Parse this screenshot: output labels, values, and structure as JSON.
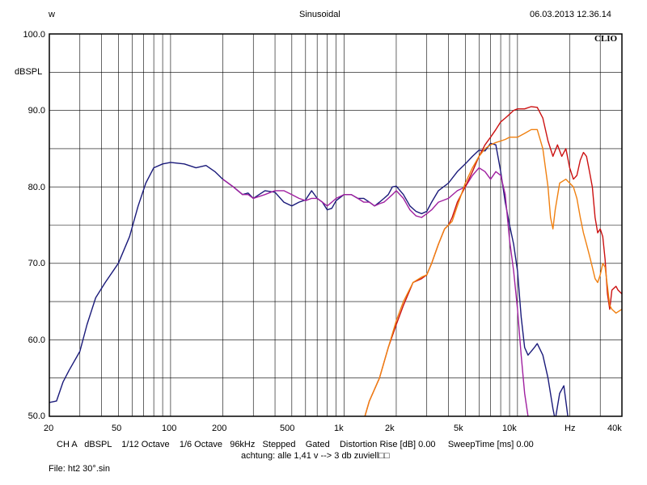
{
  "header": {
    "left": "w",
    "center": "Sinusoidal",
    "right": "06.03.2013 12.36.14",
    "logo": "CLIO"
  },
  "footer": {
    "line1": "CH A   dBSPL    1/12 Octave    1/6 Octave   96kHz   Stepped    Gated    Distortion Rise [dB] 0.00     SweepTime [ms] 0.00",
    "line2": "achtung: alle 1,41 v --> 3 db zuviell□□",
    "file": "File: ht2 30°.sin"
  },
  "chart_data": {
    "type": "line",
    "ylabel": "dBSPL",
    "xunit": "Hz",
    "xscale": "log",
    "xlim": [
      20,
      40000
    ],
    "ylim": [
      50,
      100
    ],
    "ytick_labels": [
      "100.0",
      "90.0",
      "80.0",
      "70.0",
      "60.0",
      "50.0"
    ],
    "xtick_labels": [
      "20",
      "50",
      "100",
      "200",
      "500",
      "1k",
      "2k",
      "5k",
      "10k",
      "Hz",
      "40k"
    ],
    "grid": true,
    "series": [
      {
        "color": "#1a1a7a",
        "points": [
          [
            20,
            51.8
          ],
          [
            22,
            52
          ],
          [
            24,
            54.5
          ],
          [
            26,
            56
          ],
          [
            30,
            58.5
          ],
          [
            33,
            62
          ],
          [
            37,
            65.5
          ],
          [
            42,
            67.5
          ],
          [
            50,
            70
          ],
          [
            58,
            73.5
          ],
          [
            65,
            77.5
          ],
          [
            72,
            80.5
          ],
          [
            80,
            82.5
          ],
          [
            90,
            83
          ],
          [
            100,
            83.2
          ],
          [
            120,
            83
          ],
          [
            140,
            82.5
          ],
          [
            160,
            82.8
          ],
          [
            180,
            82
          ],
          [
            200,
            81
          ],
          [
            230,
            80
          ],
          [
            260,
            79
          ],
          [
            280,
            79.2
          ],
          [
            300,
            78.5
          ],
          [
            350,
            79.5
          ],
          [
            400,
            79.3
          ],
          [
            450,
            78
          ],
          [
            500,
            77.5
          ],
          [
            550,
            78
          ],
          [
            600,
            78.3
          ],
          [
            650,
            79.5
          ],
          [
            700,
            78.5
          ],
          [
            750,
            78
          ],
          [
            800,
            77
          ],
          [
            850,
            77.2
          ],
          [
            900,
            78.2
          ],
          [
            1000,
            79
          ],
          [
            1100,
            79
          ],
          [
            1200,
            78.5
          ],
          [
            1300,
            78.5
          ],
          [
            1400,
            78
          ],
          [
            1500,
            77.5
          ],
          [
            1600,
            78
          ],
          [
            1700,
            78.5
          ],
          [
            1800,
            79
          ],
          [
            1900,
            80
          ],
          [
            2000,
            80.1
          ],
          [
            2200,
            79
          ],
          [
            2400,
            77.5
          ],
          [
            2600,
            76.8
          ],
          [
            2800,
            76.5
          ],
          [
            3000,
            76.8
          ],
          [
            3200,
            78
          ],
          [
            3500,
            79.5
          ],
          [
            4000,
            80.5
          ],
          [
            4500,
            82
          ],
          [
            5000,
            83
          ],
          [
            5500,
            84
          ],
          [
            6000,
            84.8
          ],
          [
            6500,
            84.7
          ],
          [
            7000,
            85.7
          ],
          [
            7500,
            85.5
          ],
          [
            8000,
            82
          ],
          [
            8500,
            78
          ],
          [
            9000,
            75
          ],
          [
            9500,
            72.5
          ],
          [
            10000,
            69
          ],
          [
            10500,
            63
          ],
          [
            11000,
            59
          ],
          [
            11500,
            58
          ],
          [
            12000,
            58.5
          ],
          [
            12500,
            59
          ],
          [
            13000,
            59.5
          ],
          [
            14000,
            58
          ],
          [
            15000,
            55
          ],
          [
            16000,
            51
          ],
          [
            16500,
            49.5
          ],
          [
            17500,
            53
          ],
          [
            18500,
            54
          ],
          [
            19500,
            50
          ],
          [
            20000,
            49.5
          ]
        ]
      },
      {
        "color": "#a020a0",
        "points": [
          [
            200,
            81
          ],
          [
            230,
            80
          ],
          [
            260,
            79
          ],
          [
            280,
            79
          ],
          [
            300,
            78.5
          ],
          [
            350,
            79
          ],
          [
            400,
            79.5
          ],
          [
            450,
            79.5
          ],
          [
            500,
            79
          ],
          [
            550,
            78.5
          ],
          [
            600,
            78.2
          ],
          [
            650,
            78.5
          ],
          [
            700,
            78.5
          ],
          [
            750,
            78
          ],
          [
            800,
            77.5
          ],
          [
            850,
            78
          ],
          [
            900,
            78.5
          ],
          [
            1000,
            79
          ],
          [
            1100,
            79
          ],
          [
            1200,
            78.5
          ],
          [
            1300,
            78
          ],
          [
            1400,
            78
          ],
          [
            1500,
            77.5
          ],
          [
            1600,
            77.8
          ],
          [
            1700,
            78
          ],
          [
            1800,
            78.5
          ],
          [
            1900,
            79
          ],
          [
            2000,
            79.5
          ],
          [
            2200,
            78.5
          ],
          [
            2400,
            77
          ],
          [
            2600,
            76.2
          ],
          [
            2800,
            76
          ],
          [
            3000,
            76.5
          ],
          [
            3200,
            77
          ],
          [
            3500,
            78
          ],
          [
            4000,
            78.5
          ],
          [
            4500,
            79.5
          ],
          [
            5000,
            80
          ],
          [
            5500,
            81.5
          ],
          [
            6000,
            82.5
          ],
          [
            6500,
            82
          ],
          [
            7000,
            81
          ],
          [
            7500,
            82
          ],
          [
            8000,
            81.5
          ],
          [
            8500,
            79
          ],
          [
            9000,
            73
          ],
          [
            9500,
            69
          ],
          [
            10000,
            64
          ],
          [
            10500,
            58
          ],
          [
            11000,
            53
          ],
          [
            11500,
            50
          ],
          [
            11800,
            49.5
          ]
        ]
      },
      {
        "color": "#cc1111",
        "points": [
          [
            1300,
            49.5
          ],
          [
            1400,
            52
          ],
          [
            1600,
            55
          ],
          [
            1800,
            59
          ],
          [
            2000,
            62
          ],
          [
            2200,
            64.5
          ],
          [
            2500,
            67.5
          ],
          [
            2800,
            68
          ],
          [
            3000,
            68.5
          ],
          [
            3200,
            70
          ],
          [
            3500,
            72.5
          ],
          [
            3800,
            74.5
          ],
          [
            4000,
            75
          ],
          [
            4200,
            76
          ],
          [
            4500,
            78
          ],
          [
            5000,
            80
          ],
          [
            5500,
            82
          ],
          [
            6000,
            84
          ],
          [
            6500,
            85.5
          ],
          [
            7000,
            86.5
          ],
          [
            7500,
            87.5
          ],
          [
            8000,
            88.5
          ],
          [
            8500,
            89
          ],
          [
            9000,
            89.5
          ],
          [
            9500,
            90
          ],
          [
            10000,
            90.2
          ],
          [
            11000,
            90.2
          ],
          [
            12000,
            90.5
          ],
          [
            13000,
            90.4
          ],
          [
            14000,
            89
          ],
          [
            15000,
            86
          ],
          [
            16000,
            84
          ],
          [
            17000,
            85.5
          ],
          [
            18000,
            84
          ],
          [
            19000,
            85
          ],
          [
            20000,
            82.5
          ],
          [
            21000,
            81
          ],
          [
            22000,
            81.5
          ],
          [
            23000,
            83.5
          ],
          [
            24000,
            84.5
          ],
          [
            25000,
            84
          ],
          [
            26000,
            82
          ],
          [
            27000,
            80
          ],
          [
            28000,
            76
          ],
          [
            29000,
            74
          ],
          [
            30000,
            74.5
          ],
          [
            31000,
            73.5
          ],
          [
            32000,
            70.5
          ],
          [
            33000,
            66
          ],
          [
            34000,
            64
          ],
          [
            35000,
            66.5
          ],
          [
            37000,
            67
          ],
          [
            38000,
            66.5
          ],
          [
            40000,
            66
          ]
        ]
      },
      {
        "color": "#f08010",
        "points": [
          [
            1300,
            49.5
          ],
          [
            1400,
            52
          ],
          [
            1600,
            55
          ],
          [
            1800,
            59
          ],
          [
            2000,
            62.5
          ],
          [
            2200,
            65
          ],
          [
            2500,
            67.5
          ],
          [
            2800,
            68.2
          ],
          [
            3000,
            68.5
          ],
          [
            3200,
            70
          ],
          [
            3500,
            72.5
          ],
          [
            3800,
            74.5
          ],
          [
            4000,
            75
          ],
          [
            4200,
            75.5
          ],
          [
            4500,
            77.5
          ],
          [
            5000,
            80.5
          ],
          [
            5500,
            82.5
          ],
          [
            6000,
            84
          ],
          [
            6500,
            85
          ],
          [
            7000,
            85.5
          ],
          [
            7500,
            85.8
          ],
          [
            8000,
            86
          ],
          [
            8500,
            86.2
          ],
          [
            9000,
            86.5
          ],
          [
            10000,
            86.5
          ],
          [
            11000,
            87
          ],
          [
            12000,
            87.5
          ],
          [
            13000,
            87.5
          ],
          [
            14000,
            85
          ],
          [
            15000,
            80
          ],
          [
            15500,
            76
          ],
          [
            16000,
            74.5
          ],
          [
            16500,
            77
          ],
          [
            17500,
            80.5
          ],
          [
            19000,
            81
          ],
          [
            20000,
            80.5
          ],
          [
            21000,
            80
          ],
          [
            22000,
            78.5
          ],
          [
            23000,
            76
          ],
          [
            24000,
            74
          ],
          [
            25000,
            72.5
          ],
          [
            26000,
            71
          ],
          [
            27000,
            69.5
          ],
          [
            28000,
            68
          ],
          [
            29000,
            67.5
          ],
          [
            30000,
            68.5
          ],
          [
            31000,
            70
          ],
          [
            32000,
            69.5
          ],
          [
            33000,
            67
          ],
          [
            34000,
            64.5
          ],
          [
            35000,
            64
          ],
          [
            37000,
            63.5
          ],
          [
            40000,
            64
          ]
        ]
      }
    ]
  }
}
